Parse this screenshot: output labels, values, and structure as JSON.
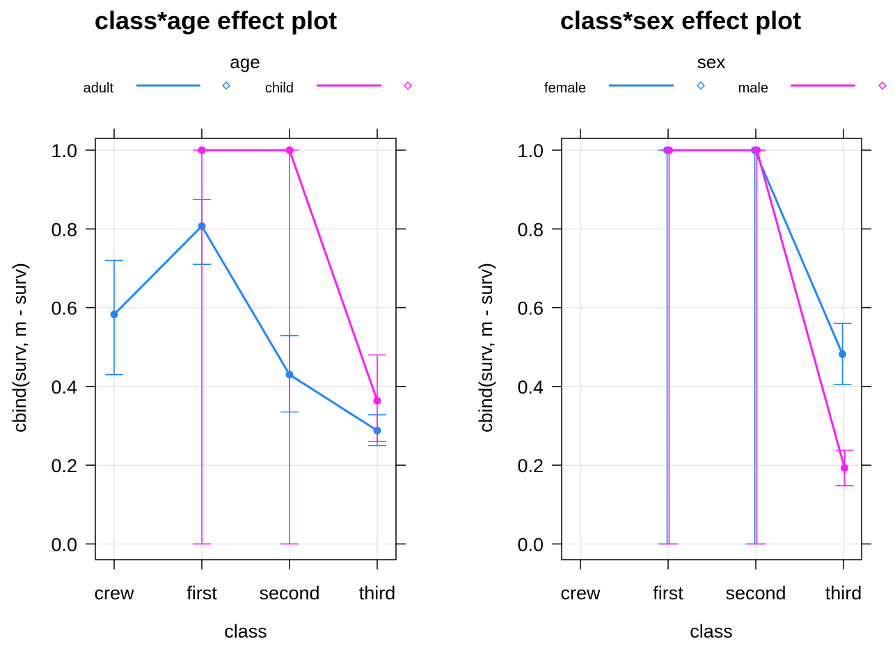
{
  "chart_data": [
    {
      "type": "line",
      "title": "class*age effect plot",
      "xlabel": "class",
      "ylabel": "cbind(surv, m - surv)",
      "categories": [
        "crew",
        "first",
        "second",
        "third"
      ],
      "ylim": [
        -0.04,
        1.03
      ],
      "yticks": [
        "0.0",
        "0.2",
        "0.4",
        "0.6",
        "0.8",
        "1.0"
      ],
      "grid": true,
      "legend": {
        "title": "age",
        "placement": "top",
        "entries": [
          "adult",
          "child"
        ]
      },
      "series": [
        {
          "name": "adult",
          "color": "#1E88FF",
          "values": [
            0.583,
            0.807,
            0.43,
            0.288
          ],
          "lower": [
            0.43,
            0.71,
            0.335,
            0.25
          ],
          "upper": [
            0.72,
            0.875,
            0.529,
            0.328
          ]
        },
        {
          "name": "child",
          "color": "#FF1CF6",
          "values": [
            null,
            1.0,
            1.0,
            0.364
          ],
          "lower": [
            null,
            0.0,
            0.0,
            0.26
          ],
          "upper": [
            null,
            1.0,
            1.0,
            0.48
          ]
        }
      ]
    },
    {
      "type": "line",
      "title": "class*sex effect plot",
      "xlabel": "class",
      "ylabel": "cbind(surv, m - surv)",
      "categories": [
        "crew",
        "first",
        "second",
        "third"
      ],
      "ylim": [
        -0.04,
        1.03
      ],
      "yticks": [
        "0.0",
        "0.2",
        "0.4",
        "0.6",
        "0.8",
        "1.0"
      ],
      "grid": true,
      "legend": {
        "title": "sex",
        "placement": "top",
        "entries": [
          "female",
          "male"
        ]
      },
      "series": [
        {
          "name": "female",
          "color": "#1E88FF",
          "values": [
            null,
            1.0,
            1.0,
            0.482
          ],
          "lower": [
            null,
            0.0,
            0.0,
            0.405
          ],
          "upper": [
            null,
            1.0,
            1.0,
            0.56
          ]
        },
        {
          "name": "male",
          "color": "#FF1CF6",
          "values": [
            null,
            1.0,
            1.0,
            0.193
          ],
          "lower": [
            null,
            0.0,
            0.0,
            0.148
          ],
          "upper": [
            null,
            1.0,
            1.0,
            0.238
          ]
        }
      ]
    }
  ]
}
